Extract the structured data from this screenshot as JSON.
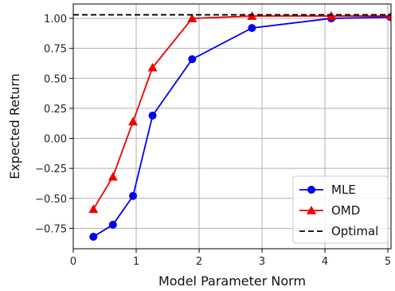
{
  "chart_data": {
    "type": "line",
    "xlabel": "Model Parameter Norm",
    "ylabel": "Expected Return",
    "xlim": [
      0,
      5.05
    ],
    "ylim": [
      -0.92,
      1.12
    ],
    "xticks": [
      0,
      1,
      2,
      3,
      4,
      5
    ],
    "xtick_labels": [
      "0",
      "1",
      "2",
      "3",
      "4",
      "5"
    ],
    "yticks": [
      -0.75,
      -0.5,
      -0.25,
      0.0,
      0.25,
      0.5,
      0.75,
      1.0
    ],
    "ytick_labels": [
      "−0.75",
      "−0.50",
      "−0.25",
      "0.00",
      "0.25",
      "0.50",
      "0.75",
      "1.00"
    ],
    "grid": true,
    "legend_position": "bottom-right",
    "series": [
      {
        "name": "MLE",
        "color": "#0000ee",
        "marker": "circle",
        "style": "solid",
        "x": [
          0.32,
          0.63,
          0.95,
          1.26,
          1.89,
          2.84,
          4.1,
          5.05
        ],
        "y": [
          -0.82,
          -0.72,
          -0.48,
          0.19,
          0.66,
          0.92,
          1.0,
          1.01
        ]
      },
      {
        "name": "OMD",
        "color": "#ee0000",
        "marker": "triangle",
        "style": "solid",
        "x": [
          0.32,
          0.63,
          0.95,
          1.26,
          1.89,
          2.84,
          4.1,
          5.05
        ],
        "y": [
          -0.59,
          -0.32,
          0.14,
          0.59,
          1.0,
          1.02,
          1.02,
          1.02
        ]
      },
      {
        "name": "Optimal",
        "color": "#000000",
        "marker": "none",
        "style": "dashed",
        "x": [
          0,
          5.05
        ],
        "y": [
          1.03,
          1.03
        ]
      }
    ]
  }
}
